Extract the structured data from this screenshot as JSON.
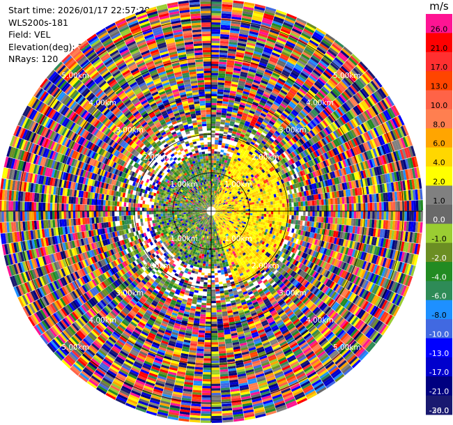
{
  "header": {
    "start_time": "Start time: 2026/01/17 22:57:28",
    "instrument": "WLS200s-181",
    "field": "Field: VEL",
    "elevation": "Elevation(deg): 35.00",
    "nrays": "NRays: 120"
  },
  "colorbar": {
    "unit": "m/s",
    "levels": [
      {
        "label": "26.0",
        "color": "#ff1493"
      },
      {
        "label": "21.0",
        "color": "#ff0000"
      },
      {
        "label": "17.0",
        "color": "#ff3030"
      },
      {
        "label": "13.0",
        "color": "#ff4500"
      },
      {
        "label": "10.0",
        "color": "#ff6347"
      },
      {
        "label": "8.0",
        "color": "#ff7f50"
      },
      {
        "label": "6.0",
        "color": "#ffa500"
      },
      {
        "label": "4.0",
        "color": "#ffd700"
      },
      {
        "label": "2.0",
        "color": "#ffff00"
      },
      {
        "label": "1.0",
        "color": "#808080"
      },
      {
        "label": "0.0",
        "color": "#696969"
      },
      {
        "label": "-1.0",
        "color": "#9acd32"
      },
      {
        "label": "-2.0",
        "color": "#6b8e23"
      },
      {
        "label": "-4.0",
        "color": "#228b22"
      },
      {
        "label": "-6.0",
        "color": "#2e8b57"
      },
      {
        "label": "-8.0",
        "color": "#1e90ff"
      },
      {
        "label": "-10.0",
        "color": "#4169e1"
      },
      {
        "label": "-13.0",
        "color": "#0000ff"
      },
      {
        "label": "-17.0",
        "color": "#0000cd"
      },
      {
        "label": "-21.0",
        "color": "#000080"
      },
      {
        "label": "-26.0",
        "color": "#191970"
      },
      {
        "label": "-30.0",
        "color": "#191970"
      }
    ]
  },
  "chart_data": {
    "type": "heatmap",
    "projection": "polar-ppi",
    "nrays": 120,
    "range_rings_km": [
      "1.00km",
      "2.00km",
      "3.00km",
      "4.00km",
      "5.00km"
    ],
    "max_range_km": 5.5,
    "field": "VEL",
    "unit": "m/s",
    "pattern": {
      "inner_positive_sector_deg": [
        20,
        160
      ],
      "inner_positive_max_range_km": 2.0,
      "inner_negative_max_range_km": 1.5,
      "noise_beyond_km": 2.5
    }
  }
}
